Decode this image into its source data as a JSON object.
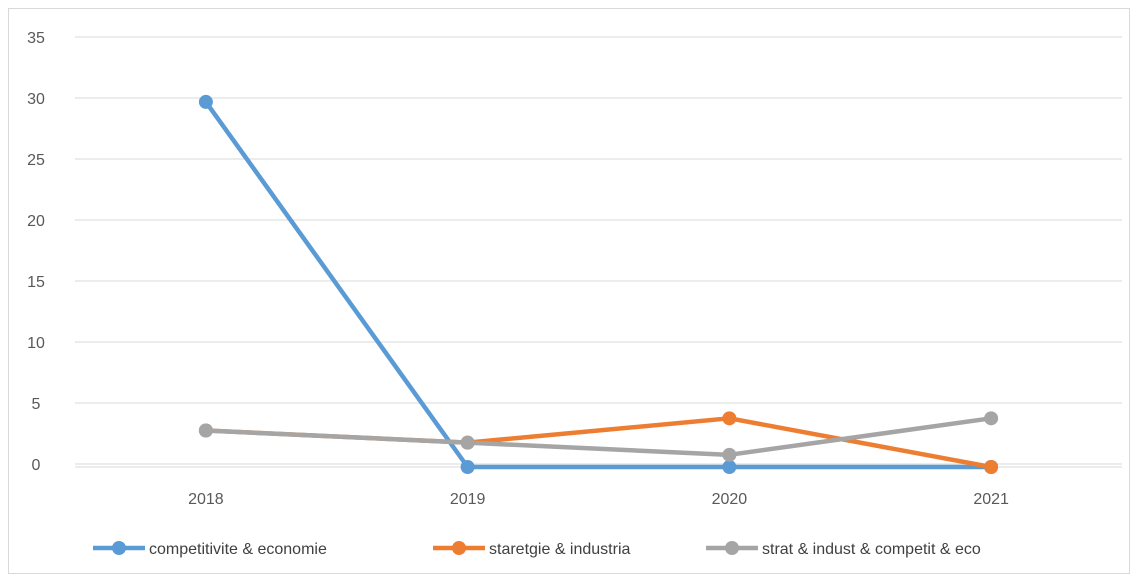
{
  "chart_data": {
    "type": "line",
    "categories": [
      "2018",
      "2019",
      "2020",
      "2021"
    ],
    "y_tick_labels": [
      "35",
      "30",
      "25",
      "20",
      "15",
      "10",
      "5",
      "0"
    ],
    "series": [
      {
        "name": "competitivite & economie",
        "values": [
          30,
          0,
          0,
          0
        ],
        "color": "#5B9BD5"
      },
      {
        "name": "staretgie & industria",
        "values": [
          3,
          2,
          4,
          0
        ],
        "color": "#ED7D31"
      },
      {
        "name": "strat & indust & competit & eco",
        "values": [
          3,
          2,
          1,
          4
        ],
        "color": "#A5A5A5"
      }
    ],
    "grid": true,
    "legend_position": "bottom"
  }
}
